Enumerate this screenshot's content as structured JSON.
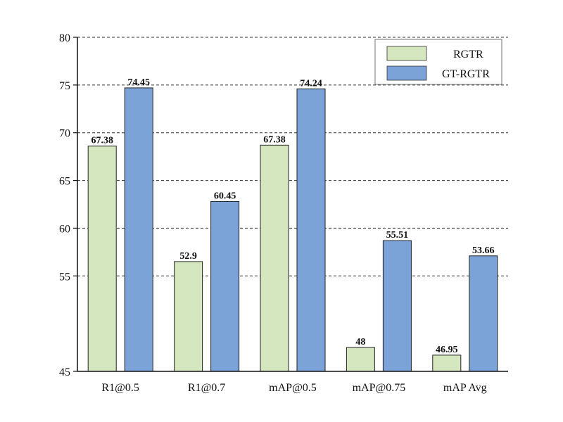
{
  "chart_data": {
    "type": "bar",
    "categories": [
      "R1@0.5",
      "R1@0.7",
      "mAP@0.5",
      "mAP@0.75",
      "mAP Avg"
    ],
    "yticks": [
      "45",
      "55",
      "60",
      "65",
      "70",
      "75",
      "80"
    ],
    "series": [
      {
        "name": "RGTR",
        "color": "#d5e7bf",
        "values": [
          67.38,
          52.9,
          67.38,
          48,
          46.95
        ],
        "bar_heights": [
          68.6,
          56.5,
          68.7,
          47.5,
          46.7
        ],
        "labels": [
          "67.38",
          "52.9",
          "67.38",
          "48",
          "46.95"
        ]
      },
      {
        "name": "GT-RGTR",
        "color": "#7ba3d8",
        "values": [
          74.45,
          60.45,
          74.24,
          55.51,
          53.66
        ],
        "bar_heights": [
          74.7,
          62.8,
          74.6,
          58.7,
          57.1
        ],
        "labels": [
          "74.45",
          "60.45",
          "74.24",
          "55.51",
          "53.66"
        ]
      }
    ],
    "ylim": [
      45,
      80
    ],
    "grid": true,
    "legend": "top-right"
  }
}
